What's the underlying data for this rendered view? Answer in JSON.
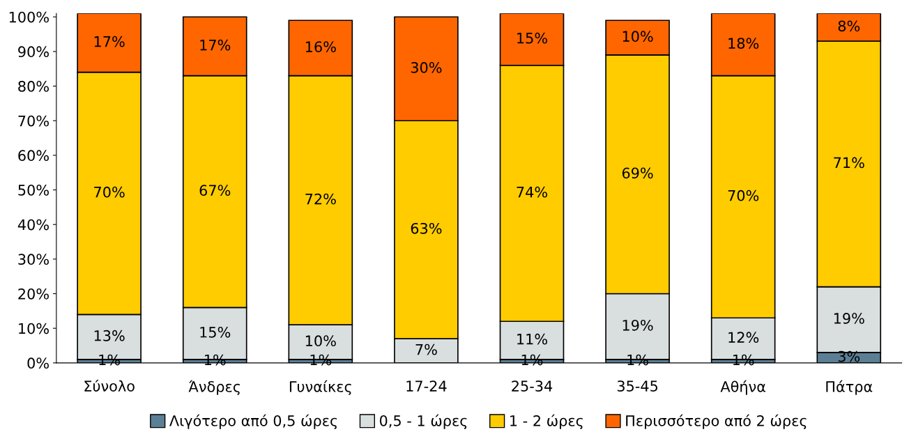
{
  "chart_data": {
    "type": "bar",
    "stacked": true,
    "categories": [
      "Σύνολο",
      "Άνδρες",
      "Γυναίκες",
      "17-24",
      "25-34",
      "35-45",
      "Αθήνα",
      "Πάτρα"
    ],
    "series": [
      {
        "name": "Λιγότερο από 0,5 ώρες",
        "color": "#5b7f95",
        "values": [
          1,
          1,
          1,
          null,
          1,
          1,
          1,
          3
        ],
        "value_labels": [
          "1%",
          "1%",
          "1%",
          null,
          "1%",
          "1%",
          "1%",
          "3%"
        ]
      },
      {
        "name": "0,5 - 1 ώρες",
        "color": "#d9dedf",
        "values": [
          13,
          15,
          10,
          7,
          11,
          19,
          12,
          19
        ],
        "value_labels": [
          "13%",
          "15%",
          "10%",
          "7%",
          "11%",
          "19%",
          "12%",
          "19%"
        ]
      },
      {
        "name": "1 - 2 ώρες",
        "color": "#ffcc00",
        "values": [
          70,
          67,
          72,
          63,
          74,
          69,
          70,
          71
        ],
        "value_labels": [
          "70%",
          "67%",
          "72%",
          "63%",
          "74%",
          "69%",
          "70%",
          "71%"
        ]
      },
      {
        "name": "Περισσότερο από 2 ώρες",
        "color": "#ff6600",
        "values": [
          17,
          17,
          16,
          30,
          15,
          10,
          18,
          8
        ],
        "value_labels": [
          "17%",
          "17%",
          "16%",
          "30%",
          "15%",
          "10%",
          "18%",
          "8%"
        ]
      }
    ],
    "ylim": [
      0,
      101
    ],
    "yticks": [
      {
        "value": 0,
        "label": "0%"
      },
      {
        "value": 10,
        "label": "10%"
      },
      {
        "value": 20,
        "label": "20%"
      },
      {
        "value": 30,
        "label": "30%"
      },
      {
        "value": 40,
        "label": "40%"
      },
      {
        "value": 50,
        "label": "50%"
      },
      {
        "value": 60,
        "label": "60%"
      },
      {
        "value": 70,
        "label": "70%"
      },
      {
        "value": 80,
        "label": "80%"
      },
      {
        "value": 90,
        "label": "90%"
      },
      {
        "value": 100,
        "label": "100%"
      }
    ],
    "grid": false,
    "legend": "bottom"
  }
}
